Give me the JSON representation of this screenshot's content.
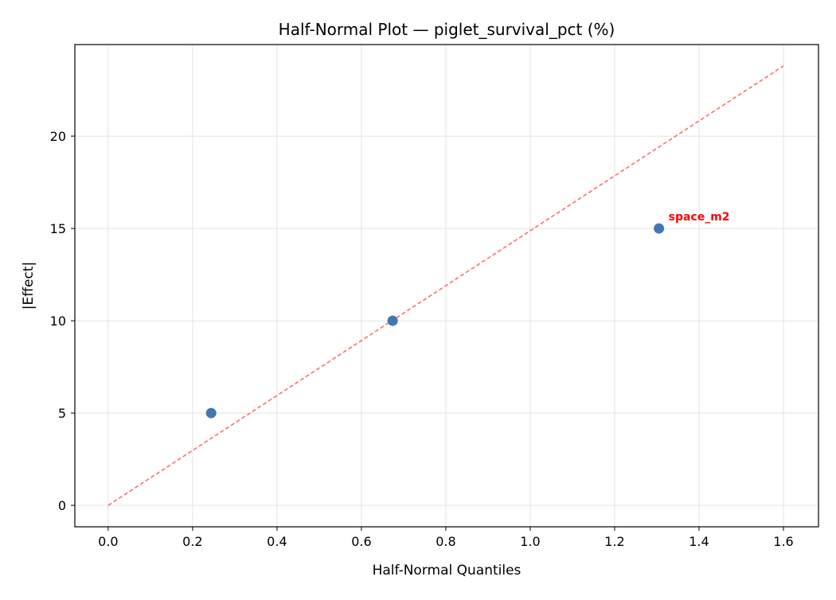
{
  "chart_data": {
    "type": "scatter",
    "title": "Half-Normal Plot — piglet_survival_pct (%)",
    "xlabel": "Half-Normal Quantiles",
    "ylabel": "|Effect|",
    "xlim": [
      -0.079,
      1.683
    ],
    "ylim": [
      -1.16,
      24.96
    ],
    "xticks": [
      "0.0",
      "0.2",
      "0.4",
      "0.6",
      "0.8",
      "1.0",
      "1.2",
      "1.4",
      "1.6"
    ],
    "yticks": [
      "0",
      "5",
      "10",
      "15",
      "20"
    ],
    "grid": true,
    "points": [
      {
        "x": 0.244,
        "y": 5,
        "label": ""
      },
      {
        "x": 0.674,
        "y": 10,
        "label": ""
      },
      {
        "x": 1.305,
        "y": 15,
        "label": "space_m2"
      }
    ],
    "reference_line": {
      "x": [
        0,
        1.6
      ],
      "y": [
        0,
        23.8
      ]
    },
    "colors": {
      "points": "#4178b0",
      "line": "#ff6666",
      "label": "#ff0000"
    }
  }
}
